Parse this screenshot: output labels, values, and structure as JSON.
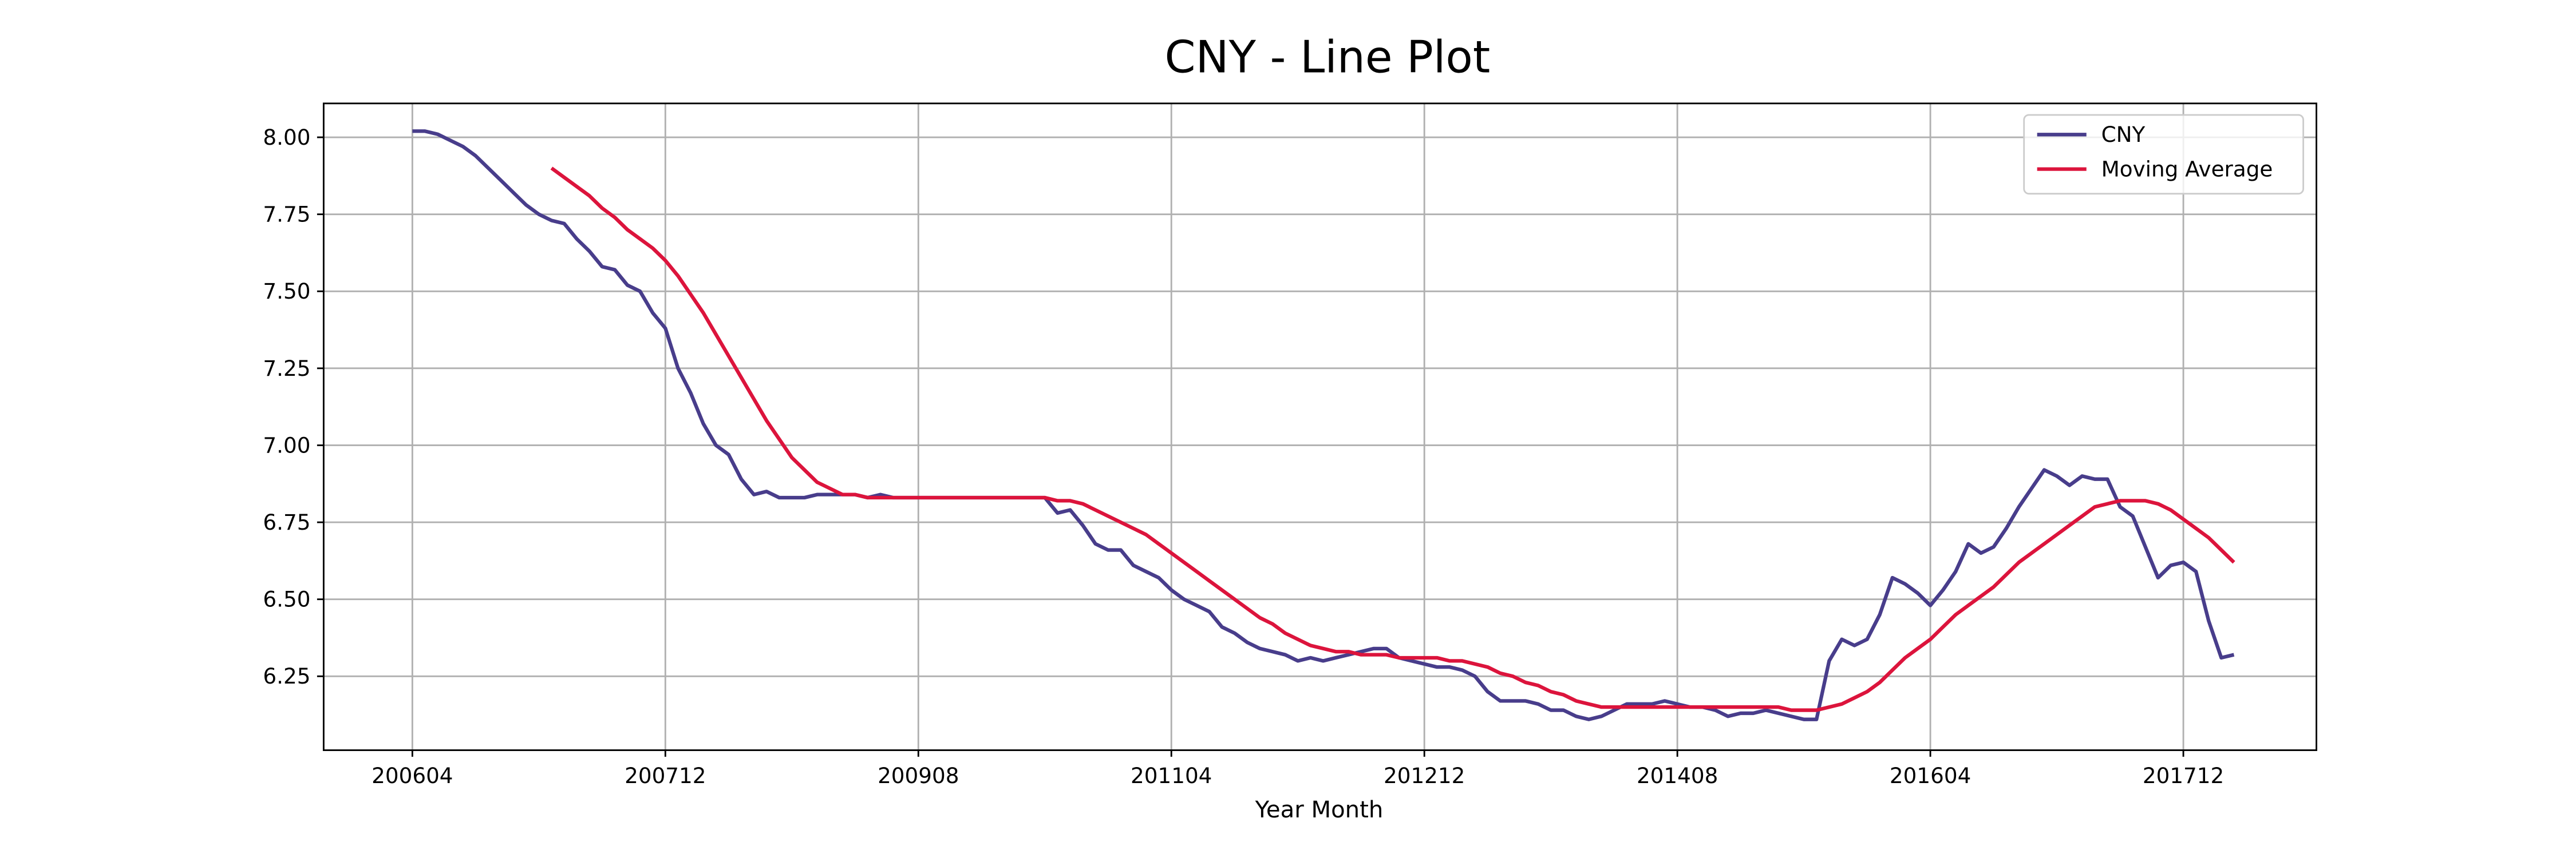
{
  "chart_data": {
    "type": "line",
    "title": "CNY - Line Plot",
    "x_label": "Year Month",
    "categories": [
      "200604",
      null,
      null,
      null,
      null,
      null,
      null,
      null,
      null,
      null,
      null,
      null,
      null,
      null,
      null,
      null,
      null,
      null,
      null,
      null,
      "200712",
      null,
      null,
      null,
      null,
      null,
      null,
      null,
      null,
      null,
      null,
      null,
      null,
      null,
      null,
      null,
      null,
      null,
      null,
      null,
      "200908",
      null,
      null,
      null,
      null,
      null,
      null,
      null,
      null,
      null,
      null,
      null,
      null,
      null,
      null,
      null,
      null,
      null,
      null,
      null,
      "201104",
      null,
      null,
      null,
      null,
      null,
      null,
      null,
      null,
      null,
      null,
      null,
      null,
      null,
      null,
      null,
      null,
      null,
      null,
      null,
      "201212",
      null,
      null,
      null,
      null,
      null,
      null,
      null,
      null,
      null,
      null,
      null,
      null,
      null,
      null,
      null,
      null,
      null,
      null,
      null,
      "201408",
      null,
      null,
      null,
      null,
      null,
      null,
      null,
      null,
      null,
      null,
      null,
      null,
      null,
      null,
      null,
      null,
      null,
      null,
      null,
      "201604",
      null,
      null,
      null,
      null,
      null,
      null,
      null,
      null,
      null,
      null,
      null,
      null,
      null,
      null,
      null,
      null,
      null,
      null,
      null,
      "201712",
      null,
      null,
      null,
      null
    ],
    "series": [
      {
        "name": "CNY",
        "color": "#483d8b",
        "values": [
          8.02,
          8.02,
          8.01,
          7.99,
          7.97,
          7.94,
          7.9,
          7.86,
          7.82,
          7.78,
          7.75,
          7.73,
          7.72,
          7.67,
          7.63,
          7.58,
          7.57,
          7.52,
          7.5,
          7.43,
          7.38,
          7.25,
          7.17,
          7.07,
          7.0,
          6.97,
          6.89,
          6.84,
          6.85,
          6.83,
          6.83,
          6.83,
          6.84,
          6.84,
          6.84,
          6.84,
          6.83,
          6.84,
          6.83,
          6.83,
          6.83,
          6.83,
          6.83,
          6.83,
          6.83,
          6.83,
          6.83,
          6.83,
          6.83,
          6.83,
          6.83,
          6.78,
          6.79,
          6.74,
          6.68,
          6.66,
          6.66,
          6.61,
          6.59,
          6.57,
          6.53,
          6.5,
          6.48,
          6.46,
          6.41,
          6.39,
          6.36,
          6.34,
          6.33,
          6.32,
          6.3,
          6.31,
          6.3,
          6.31,
          6.32,
          6.33,
          6.34,
          6.34,
          6.31,
          6.3,
          6.29,
          6.28,
          6.28,
          6.27,
          6.25,
          6.2,
          6.17,
          6.17,
          6.17,
          6.16,
          6.14,
          6.14,
          6.12,
          6.11,
          6.12,
          6.14,
          6.16,
          6.16,
          6.16,
          6.17,
          6.16,
          6.15,
          6.15,
          6.14,
          6.12,
          6.13,
          6.13,
          6.14,
          6.13,
          6.12,
          6.11,
          6.11,
          6.3,
          6.37,
          6.35,
          6.37,
          6.45,
          6.57,
          6.55,
          6.52,
          6.48,
          6.53,
          6.59,
          6.68,
          6.65,
          6.67,
          6.73,
          6.8,
          6.86,
          6.92,
          6.9,
          6.87,
          6.9,
          6.89,
          6.89,
          6.8,
          6.77,
          6.67,
          6.57,
          6.61,
          6.62,
          6.59,
          6.43,
          6.31,
          6.32
        ]
      },
      {
        "name": "Moving Average",
        "color": "#dc143c",
        "values": [
          null,
          null,
          null,
          null,
          null,
          null,
          null,
          null,
          null,
          null,
          null,
          7.9,
          7.87,
          7.84,
          7.81,
          7.77,
          7.74,
          7.7,
          7.67,
          7.64,
          7.6,
          7.55,
          7.49,
          7.43,
          7.36,
          7.29,
          7.22,
          7.15,
          7.08,
          7.02,
          6.96,
          6.92,
          6.88,
          6.86,
          6.84,
          6.84,
          6.83,
          6.83,
          6.83,
          6.83,
          6.83,
          6.83,
          6.83,
          6.83,
          6.83,
          6.83,
          6.83,
          6.83,
          6.83,
          6.83,
          6.83,
          6.82,
          6.82,
          6.81,
          6.79,
          6.77,
          6.75,
          6.73,
          6.71,
          6.68,
          6.65,
          6.62,
          6.59,
          6.56,
          6.53,
          6.5,
          6.47,
          6.44,
          6.42,
          6.39,
          6.37,
          6.35,
          6.34,
          6.33,
          6.33,
          6.32,
          6.32,
          6.32,
          6.31,
          6.31,
          6.31,
          6.31,
          6.3,
          6.3,
          6.29,
          6.28,
          6.26,
          6.25,
          6.23,
          6.22,
          6.2,
          6.19,
          6.17,
          6.16,
          6.15,
          6.15,
          6.15,
          6.15,
          6.15,
          6.15,
          6.15,
          6.15,
          6.15,
          6.15,
          6.15,
          6.15,
          6.15,
          6.15,
          6.15,
          6.14,
          6.14,
          6.14,
          6.15,
          6.16,
          6.18,
          6.2,
          6.23,
          6.27,
          6.31,
          6.34,
          6.37,
          6.41,
          6.45,
          6.48,
          6.51,
          6.54,
          6.58,
          6.62,
          6.65,
          6.68,
          6.71,
          6.74,
          6.77,
          6.8,
          6.81,
          6.82,
          6.82,
          6.82,
          6.81,
          6.79,
          6.76,
          6.73,
          6.7,
          6.66,
          6.62
        ]
      }
    ],
    "ylim": [
      6.01,
      8.11
    ],
    "yticks": [
      {
        "value": 6.25,
        "label": "6.25"
      },
      {
        "value": 6.5,
        "label": "6.50"
      },
      {
        "value": 6.75,
        "label": "6.75"
      },
      {
        "value": 7,
        "label": "7.00"
      },
      {
        "value": 7.25,
        "label": "7.25"
      },
      {
        "value": 7.5,
        "label": "7.50"
      },
      {
        "value": 7.75,
        "label": "7.75"
      },
      {
        "value": 8,
        "label": "8.00"
      }
    ],
    "grid": true,
    "legend": "upper right"
  }
}
